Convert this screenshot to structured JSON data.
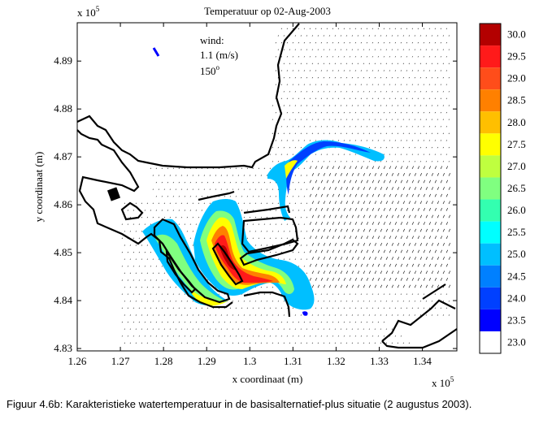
{
  "chart_data": {
    "type": "heatmap",
    "title": "Temperatuur op 02-Aug-2003",
    "xlabel": "x coordinaat (m)",
    "ylabel": "y coordinaat (m)",
    "x_multiplier": "x 10",
    "y_multiplier": "x 10",
    "exponent": "5",
    "xlim": [
      1.26,
      1.348
    ],
    "ylim": [
      4.8295,
      4.898
    ],
    "x_ticks": [
      1.26,
      1.27,
      1.28,
      1.29,
      1.3,
      1.31,
      1.32,
      1.33,
      1.34
    ],
    "x_tick_labels": [
      "1.26",
      "1.27",
      "1.28",
      "1.29",
      "1.3",
      "1.31",
      "1.32",
      "1.33",
      "1.34"
    ],
    "y_ticks": [
      4.83,
      4.84,
      4.85,
      4.86,
      4.87,
      4.88,
      4.89
    ],
    "y_tick_labels": [
      "4.83",
      "4.84",
      "4.85",
      "4.86",
      "4.87",
      "4.88",
      "4.89"
    ],
    "annotation": {
      "line1": "wind:",
      "line2": "1.1 (m/s)",
      "line3": "150",
      "line3_superscript": "o"
    },
    "colorbar": {
      "levels": [
        {
          "label": "30.0",
          "color": "#b30000"
        },
        {
          "label": "29.5",
          "color": "#ff1a1a"
        },
        {
          "label": "29.0",
          "color": "#ff4d1a"
        },
        {
          "label": "28.5",
          "color": "#ff8000"
        },
        {
          "label": "28.0",
          "color": "#ffbf00"
        },
        {
          "label": "27.5",
          "color": "#ffff00"
        },
        {
          "label": "27.0",
          "color": "#bfff3f"
        },
        {
          "label": "26.5",
          "color": "#80ff80"
        },
        {
          "label": "26.0",
          "color": "#33ffb0"
        },
        {
          "label": "25.5",
          "color": "#00ffff"
        },
        {
          "label": "25.0",
          "color": "#00bfff"
        },
        {
          "label": "24.5",
          "color": "#0080ff"
        },
        {
          "label": "24.0",
          "color": "#0040ff"
        },
        {
          "label": "23.5",
          "color": "#0000ff"
        },
        {
          "label": "23.0",
          "color": "#ffffff"
        }
      ]
    },
    "grid": false
  },
  "caption": "Figuur 4.6b: Karakteristieke watertemperatuur in de basisalternatief-plus situatie (2 augustus 2003)."
}
